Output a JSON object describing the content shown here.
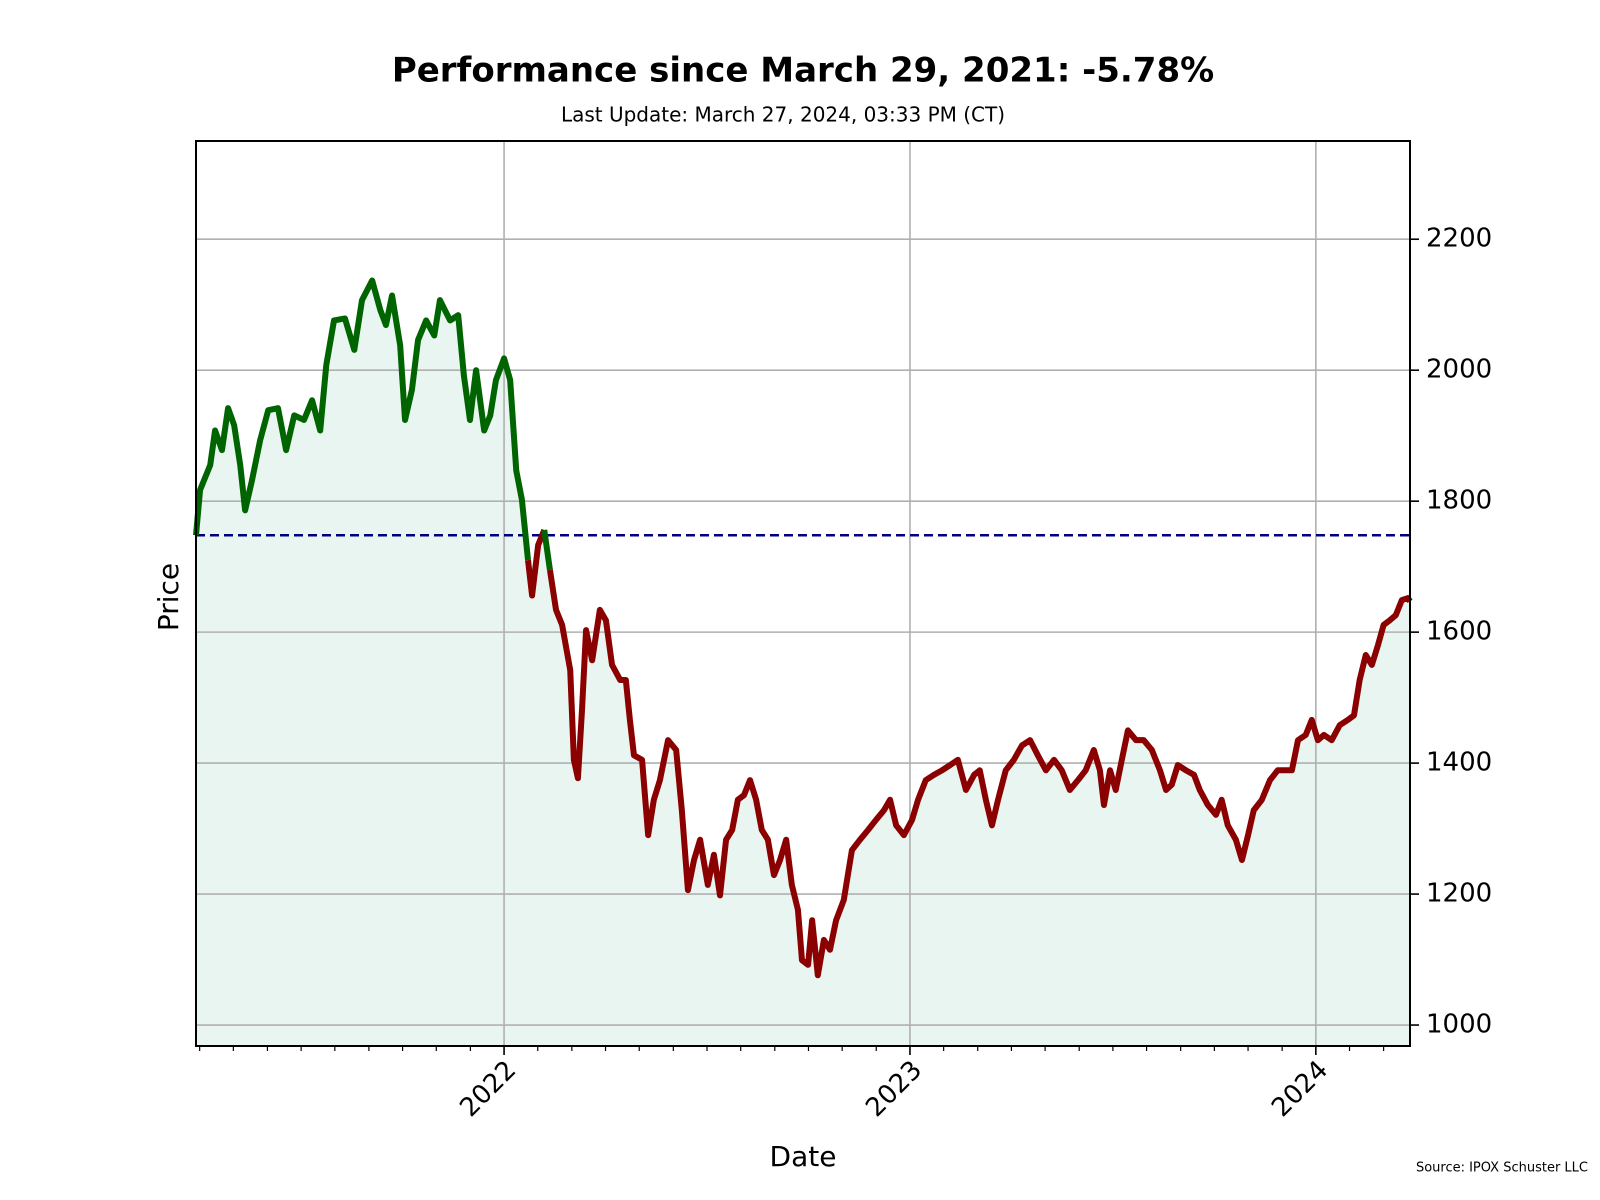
{
  "chart_data": {
    "type": "line",
    "title": "Performance since March 29, 2021: -5.78%",
    "subtitle": "Last Update: March 27, 2024, 03:33 PM (CT)",
    "xlabel": "Date",
    "ylabel": "Price",
    "source": "Source: IPOX Schuster LLC",
    "yaxis_side": "right",
    "grid": true,
    "baseline": 1748,
    "baseline_color": "#00007f",
    "above_color": "#006400",
    "below_color": "#8b0000",
    "fill_color": "#e9f5f0",
    "xlim": [
      2021.241,
      2024.232
    ],
    "xticks": [
      2022,
      2023,
      2024
    ],
    "xminorticks": [
      2021.25,
      2021.333,
      2021.417,
      2021.5,
      2021.583,
      2021.667,
      2021.75,
      2021.833,
      2021.917,
      2022.083,
      2022.167,
      2022.25,
      2022.333,
      2022.417,
      2022.5,
      2022.583,
      2022.667,
      2022.75,
      2022.833,
      2022.917,
      2023.083,
      2023.167,
      2023.25,
      2023.333,
      2023.417,
      2023.5,
      2023.583,
      2023.667,
      2023.75,
      2023.833,
      2023.917,
      2024.083,
      2024.167
    ],
    "ylim": [
      968,
      2350
    ],
    "yticks": [
      1000,
      1200,
      1400,
      1600,
      1800,
      2000,
      2200
    ],
    "x": [
      2021.241,
      2021.251,
      2021.276,
      2021.288,
      2021.305,
      2021.32,
      2021.335,
      2021.35,
      2021.362,
      2021.379,
      2021.399,
      2021.419,
      2021.443,
      2021.463,
      2021.483,
      2021.507,
      2021.527,
      2021.547,
      2021.562,
      2021.581,
      2021.608,
      2021.631,
      2021.65,
      2021.675,
      2021.695,
      2021.709,
      2021.724,
      2021.744,
      2021.756,
      2021.773,
      2021.788,
      2021.808,
      2021.828,
      2021.842,
      2021.867,
      2021.887,
      2021.901,
      2021.916,
      2021.931,
      2021.951,
      2021.966,
      2021.98,
      2022.0,
      2022.015,
      2022.03,
      2022.044,
      2022.059,
      2022.069,
      2022.084,
      2022.099,
      2022.113,
      2022.128,
      2022.143,
      2022.163,
      2022.172,
      2022.182,
      2022.192,
      2022.202,
      2022.217,
      2022.236,
      2022.251,
      2022.266,
      2022.286,
      2022.3,
      2022.31,
      2022.32,
      2022.34,
      2022.355,
      2022.369,
      2022.384,
      2022.404,
      2022.424,
      2022.438,
      2022.453,
      2022.468,
      2022.483,
      2022.502,
      2022.517,
      2022.532,
      2022.547,
      2022.562,
      2022.576,
      2022.591,
      2022.606,
      2022.621,
      2022.635,
      2022.65,
      2022.665,
      2022.68,
      2022.695,
      2022.709,
      2022.724,
      2022.734,
      2022.749,
      2022.759,
      2022.773,
      2022.788,
      2022.803,
      2022.818,
      2022.837,
      2022.857,
      2022.877,
      2022.897,
      2022.916,
      2022.936,
      2022.951,
      2022.966,
      2022.985,
      2023.005,
      2023.02,
      2023.039,
      2023.059,
      2023.079,
      2023.099,
      2023.118,
      2023.138,
      2023.158,
      2023.172,
      2023.187,
      2023.202,
      2023.217,
      2023.236,
      2023.256,
      2023.276,
      2023.296,
      2023.315,
      2023.335,
      2023.355,
      2023.374,
      2023.394,
      2023.414,
      2023.433,
      2023.453,
      2023.468,
      2023.478,
      2023.493,
      2023.507,
      2023.522,
      2023.537,
      2023.557,
      2023.576,
      2023.596,
      2023.616,
      2023.631,
      2023.645,
      2023.66,
      2023.68,
      2023.7,
      2023.714,
      2023.734,
      2023.754,
      2023.768,
      2023.783,
      2023.803,
      2023.818,
      2023.833,
      2023.847,
      2023.867,
      2023.887,
      2023.906,
      2023.926,
      2023.941,
      2023.956,
      2023.975,
      2023.99,
      2024.005,
      2024.02,
      2024.039,
      2024.059,
      2024.079,
      2024.094,
      2024.108,
      2024.123,
      2024.138,
      2024.153,
      2024.167,
      2024.182,
      2024.197,
      2024.212,
      2024.227,
      2024.232
    ],
    "values": [
      1748,
      1817,
      1855,
      1908,
      1878,
      1942,
      1916,
      1855,
      1786,
      1832,
      1893,
      1939,
      1942,
      1878,
      1931,
      1924,
      1954,
      1908,
      2008,
      2076,
      2079,
      2031,
      2107,
      2137,
      2092,
      2069,
      2114,
      2038,
      1924,
      1970,
      2046,
      2076,
      2053,
      2107,
      2076,
      2084,
      1992,
      1924,
      2000,
      1908,
      1931,
      1985,
      2018,
      1985,
      1847,
      1802,
      1710,
      1656,
      1733,
      1756,
      1695,
      1634,
      1611,
      1542,
      1405,
      1377,
      1481,
      1603,
      1557,
      1634,
      1618,
      1550,
      1527,
      1527,
      1466,
      1412,
      1405,
      1290,
      1344,
      1374,
      1435,
      1420,
      1328,
      1206,
      1252,
      1283,
      1214,
      1260,
      1198,
      1283,
      1298,
      1344,
      1351,
      1374,
      1344,
      1298,
      1283,
      1229,
      1252,
      1283,
      1214,
      1176,
      1099,
      1092,
      1160,
      1076,
      1130,
      1115,
      1160,
      1191,
      1267,
      1283,
      1298,
      1313,
      1328,
      1344,
      1305,
      1290,
      1313,
      1344,
      1374,
      1382,
      1389,
      1397,
      1405,
      1359,
      1382,
      1389,
      1344,
      1305,
      1344,
      1389,
      1405,
      1427,
      1435,
      1412,
      1389,
      1405,
      1389,
      1359,
      1374,
      1389,
      1420,
      1389,
      1336,
      1389,
      1359,
      1405,
      1450,
      1435,
      1435,
      1420,
      1389,
      1359,
      1367,
      1397,
      1389,
      1382,
      1359,
      1336,
      1321,
      1344,
      1305,
      1283,
      1252,
      1290,
      1328,
      1344,
      1374,
      1389,
      1389,
      1389,
      1435,
      1443,
      1466,
      1435,
      1443,
      1435,
      1458,
      1466,
      1473,
      1527,
      1565,
      1550,
      1580,
      1611,
      1618,
      1626,
      1649,
      1652,
      1647
    ]
  }
}
